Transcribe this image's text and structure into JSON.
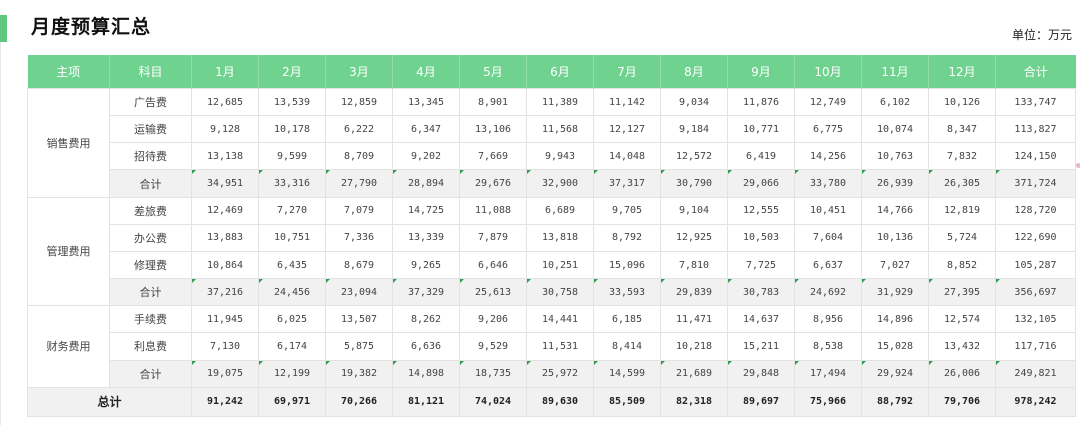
{
  "title": "月度预算汇总",
  "unit": "单位：万元",
  "headers": [
    "主项",
    "科目",
    "1月",
    "2月",
    "3月",
    "4月",
    "5月",
    "6月",
    "7月",
    "8月",
    "9月",
    "10月",
    "11月",
    "12月",
    "合计"
  ],
  "subtotal_label": "合计",
  "groups": [
    {
      "name": "销售费用",
      "rows": [
        {
          "item": "广告费",
          "values": [
            "12,685",
            "13,539",
            "12,859",
            "13,345",
            "8,901",
            "11,389",
            "11,142",
            "9,034",
            "11,876",
            "12,749",
            "6,102",
            "10,126",
            "133,747"
          ]
        },
        {
          "item": "运输费",
          "values": [
            "9,128",
            "10,178",
            "6,222",
            "6,347",
            "13,106",
            "11,568",
            "12,127",
            "9,184",
            "10,771",
            "6,775",
            "10,074",
            "8,347",
            "113,827"
          ]
        },
        {
          "item": "招待费",
          "values": [
            "13,138",
            "9,599",
            "8,709",
            "9,202",
            "7,669",
            "9,943",
            "14,048",
            "12,572",
            "6,419",
            "14,256",
            "10,763",
            "7,832",
            "124,150"
          ]
        }
      ],
      "subtotal": [
        "34,951",
        "33,316",
        "27,790",
        "28,894",
        "29,676",
        "32,900",
        "37,317",
        "30,790",
        "29,066",
        "33,780",
        "26,939",
        "26,305",
        "371,724"
      ]
    },
    {
      "name": "管理费用",
      "rows": [
        {
          "item": "差旅费",
          "values": [
            "12,469",
            "7,270",
            "7,079",
            "14,725",
            "11,088",
            "6,689",
            "9,705",
            "9,104",
            "12,555",
            "10,451",
            "14,766",
            "12,819",
            "128,720"
          ]
        },
        {
          "item": "办公费",
          "values": [
            "13,883",
            "10,751",
            "7,336",
            "13,339",
            "7,879",
            "13,818",
            "8,792",
            "12,925",
            "10,503",
            "7,604",
            "10,136",
            "5,724",
            "122,690"
          ]
        },
        {
          "item": "修理费",
          "values": [
            "10,864",
            "6,435",
            "8,679",
            "9,265",
            "6,646",
            "10,251",
            "15,096",
            "7,810",
            "7,725",
            "6,637",
            "7,027",
            "8,852",
            "105,287"
          ]
        }
      ],
      "subtotal": [
        "37,216",
        "24,456",
        "23,094",
        "37,329",
        "25,613",
        "30,758",
        "33,593",
        "29,839",
        "30,783",
        "24,692",
        "31,929",
        "27,395",
        "356,697"
      ]
    },
    {
      "name": "财务费用",
      "rows": [
        {
          "item": "手续费",
          "values": [
            "11,945",
            "6,025",
            "13,507",
            "8,262",
            "9,206",
            "14,441",
            "6,185",
            "11,471",
            "14,637",
            "8,956",
            "14,896",
            "12,574",
            "132,105"
          ]
        },
        {
          "item": "利息费",
          "values": [
            "7,130",
            "6,174",
            "5,875",
            "6,636",
            "9,529",
            "11,531",
            "8,414",
            "10,218",
            "15,211",
            "8,538",
            "15,028",
            "13,432",
            "117,716"
          ]
        }
      ],
      "subtotal": [
        "19,075",
        "12,199",
        "19,382",
        "14,898",
        "18,735",
        "25,972",
        "14,599",
        "21,689",
        "29,848",
        "17,494",
        "29,924",
        "26,006",
        "249,821"
      ]
    }
  ],
  "grand_total": {
    "label": "总计",
    "values": [
      "91,242",
      "69,971",
      "70,266",
      "81,121",
      "74,024",
      "89,630",
      "85,509",
      "82,318",
      "89,697",
      "75,966",
      "88,792",
      "79,706",
      "978,242"
    ]
  },
  "colors": {
    "accent": "#5fc77f",
    "header_bg": "#6fd38f",
    "subtotal_bg": "#f1f1f1",
    "marker": "#2e9a52"
  }
}
